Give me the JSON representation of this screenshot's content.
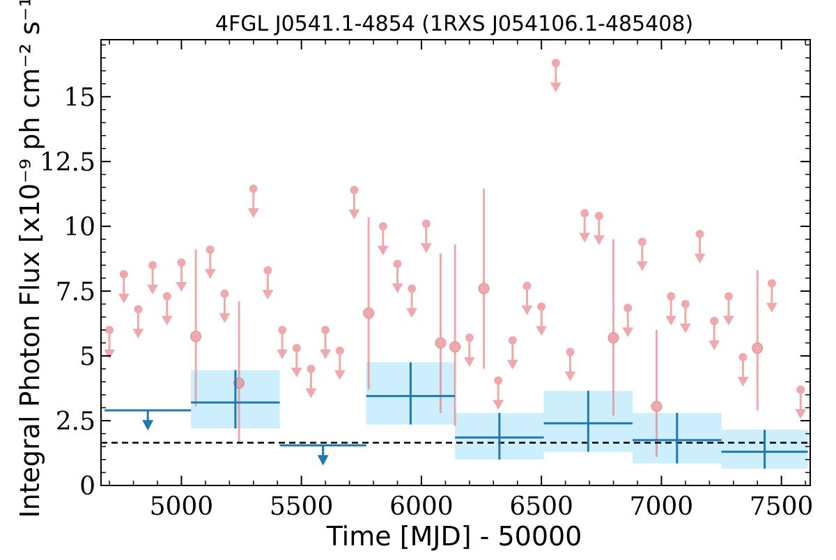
{
  "chart_data": {
    "type": "scatter",
    "title": "4FGL J0541.1-4854 (1RXS J054106.1-485408)",
    "xlabel": "Time [MJD] - 50000",
    "ylabel": "Integral Photon Flux [x10⁻⁹ ph cm⁻² s⁻¹]",
    "xlim": [
      4665,
      7620
    ],
    "ylim": [
      0,
      17.2
    ],
    "xticks": [
      5000,
      5500,
      6000,
      6500,
      7000,
      7500
    ],
    "xtick_labels": [
      "5000",
      "5500",
      "6000",
      "6500",
      "7000",
      "7500"
    ],
    "yticks": [
      0,
      2.5,
      5,
      7.5,
      10,
      12.5,
      15
    ],
    "ytick_labels": [
      "0",
      "2.5",
      "5",
      "7.5",
      "10",
      "12.5",
      "15"
    ],
    "grid": false,
    "colors": {
      "short_bins": "#e8868a",
      "long_bins": "#1f77b4",
      "long_bins_band": "#cdeefc",
      "baseline": "#000000"
    },
    "baseline": 1.65,
    "short_bins": {
      "upper_limits": [
        {
          "x": 4700,
          "y": 6.0
        },
        {
          "x": 4760,
          "y": 8.15
        },
        {
          "x": 4820,
          "y": 6.8
        },
        {
          "x": 4880,
          "y": 8.5
        },
        {
          "x": 4940,
          "y": 7.3
        },
        {
          "x": 5000,
          "y": 8.6
        },
        {
          "x": 5120,
          "y": 9.1
        },
        {
          "x": 5180,
          "y": 7.4
        },
        {
          "x": 5300,
          "y": 11.45
        },
        {
          "x": 5360,
          "y": 8.3
        },
        {
          "x": 5420,
          "y": 6.0
        },
        {
          "x": 5480,
          "y": 5.3
        },
        {
          "x": 5540,
          "y": 4.5
        },
        {
          "x": 5600,
          "y": 6.0
        },
        {
          "x": 5660,
          "y": 5.2
        },
        {
          "x": 5720,
          "y": 11.4
        },
        {
          "x": 5840,
          "y": 10.0
        },
        {
          "x": 5900,
          "y": 8.55
        },
        {
          "x": 5960,
          "y": 7.6
        },
        {
          "x": 6020,
          "y": 10.1
        },
        {
          "x": 6200,
          "y": 5.7
        },
        {
          "x": 6320,
          "y": 4.05
        },
        {
          "x": 6380,
          "y": 5.6
        },
        {
          "x": 6440,
          "y": 7.7
        },
        {
          "x": 6500,
          "y": 6.9
        },
        {
          "x": 6560,
          "y": 16.3
        },
        {
          "x": 6620,
          "y": 5.15
        },
        {
          "x": 6680,
          "y": 10.5
        },
        {
          "x": 6740,
          "y": 10.4
        },
        {
          "x": 6920,
          "y": 9.4
        },
        {
          "x": 6860,
          "y": 6.85
        },
        {
          "x": 7040,
          "y": 7.3
        },
        {
          "x": 7100,
          "y": 7.0
        },
        {
          "x": 7160,
          "y": 9.7
        },
        {
          "x": 7220,
          "y": 6.35
        },
        {
          "x": 7280,
          "y": 7.3
        },
        {
          "x": 7340,
          "y": 4.95
        },
        {
          "x": 7460,
          "y": 7.8
        },
        {
          "x": 7580,
          "y": 3.7
        }
      ],
      "detections": [
        {
          "x": 5060,
          "y": 5.75,
          "ylo": 3.05,
          "yhi": 9.1
        },
        {
          "x": 5240,
          "y": 3.95,
          "ylo": 1.6,
          "yhi": 7.1
        },
        {
          "x": 5780,
          "y": 6.65,
          "ylo": 3.7,
          "yhi": 10.35
        },
        {
          "x": 6080,
          "y": 5.5,
          "ylo": 2.8,
          "yhi": 8.95
        },
        {
          "x": 6140,
          "y": 5.35,
          "ylo": 2.3,
          "yhi": 9.3
        },
        {
          "x": 6260,
          "y": 7.6,
          "ylo": 4.5,
          "yhi": 11.45
        },
        {
          "x": 6800,
          "y": 5.7,
          "ylo": 2.7,
          "yhi": 9.5
        },
        {
          "x": 6980,
          "y": 3.05,
          "ylo": 1.1,
          "yhi": 6.0
        },
        {
          "x": 7400,
          "y": 5.3,
          "ylo": 2.9,
          "yhi": 8.3
        }
      ]
    },
    "long_bins": {
      "upper_limits": [
        {
          "x0": 4680,
          "x1": 5040,
          "y": 2.9
        },
        {
          "x0": 5410,
          "x1": 5770,
          "y": 1.55
        }
      ],
      "detections": [
        {
          "x0": 5040,
          "x1": 5410,
          "x": 5225,
          "y": 3.2,
          "ylo": 2.2,
          "yhi": 4.45
        },
        {
          "x0": 5770,
          "x1": 6140,
          "x": 5955,
          "y": 3.45,
          "ylo": 2.35,
          "yhi": 4.75
        },
        {
          "x0": 6140,
          "x1": 6510,
          "x": 6325,
          "y": 1.85,
          "ylo": 1.0,
          "yhi": 2.8
        },
        {
          "x0": 6510,
          "x1": 6880,
          "x": 6695,
          "y": 2.4,
          "ylo": 1.3,
          "yhi": 3.65
        },
        {
          "x0": 6880,
          "x1": 7250,
          "x": 7065,
          "y": 1.75,
          "ylo": 0.85,
          "yhi": 2.8
        },
        {
          "x0": 7250,
          "x1": 7610,
          "x": 7430,
          "y": 1.3,
          "ylo": 0.65,
          "yhi": 2.15
        }
      ]
    }
  }
}
